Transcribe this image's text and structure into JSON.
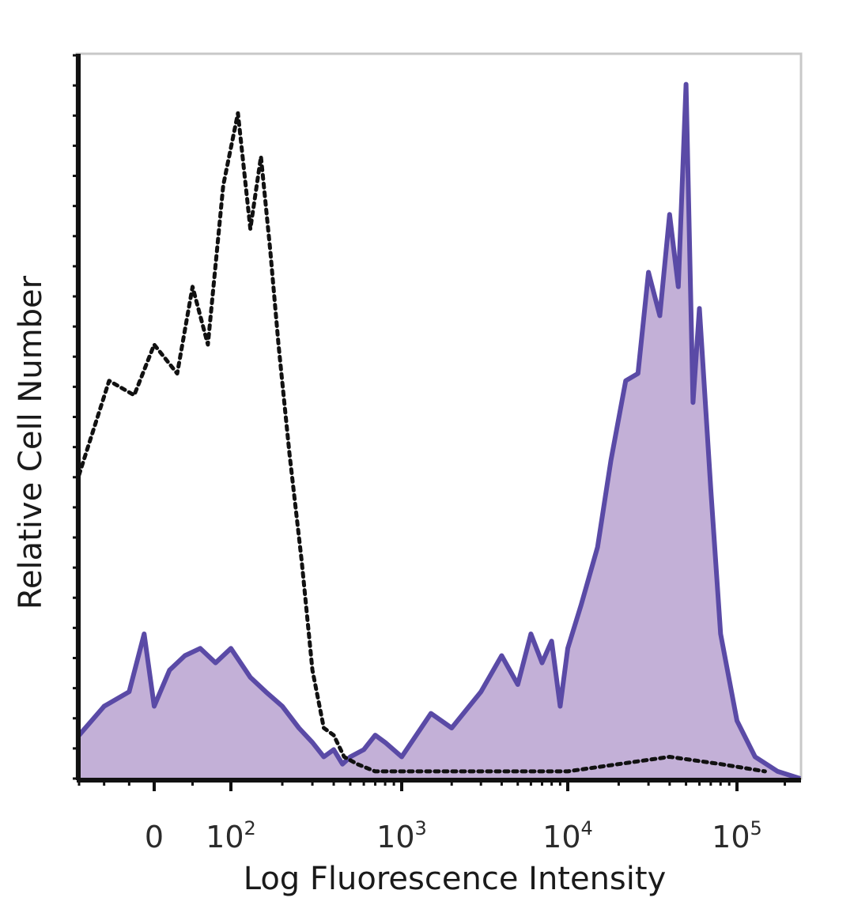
{
  "chart_data": {
    "type": "area",
    "title": "",
    "xlabel": "Log Fluorescence Intensity",
    "ylabel": "Relative Cell Number",
    "x_scale": "biexponential (log above 10^2)",
    "xlim": [
      -150,
      250000
    ],
    "ylim": [
      0,
      1
    ],
    "grid": false,
    "legend": "none",
    "x_ticks": [
      {
        "value": 0,
        "base": "0",
        "exp": ""
      },
      {
        "value": 100,
        "base": "10",
        "exp": "2"
      },
      {
        "value": 1000,
        "base": "10",
        "exp": "3"
      },
      {
        "value": 10000,
        "base": "10",
        "exp": "4"
      },
      {
        "value": 100000,
        "base": "10",
        "exp": "5"
      }
    ],
    "colors": {
      "stained_line": "#5a4aa6",
      "stained_fill": "#b9a2d0",
      "control_line": "#111111"
    },
    "series": [
      {
        "style": "dotted black line, unfilled",
        "x": [
          -150,
          -90,
          -40,
          0,
          30,
          50,
          70,
          90,
          110,
          130,
          150,
          170,
          190,
          220,
          260,
          300,
          350,
          400,
          460,
          550,
          700,
          1000,
          2000,
          5000,
          10000,
          20000,
          40000,
          80000,
          150000
        ],
        "y": [
          0.42,
          0.55,
          0.53,
          0.6,
          0.56,
          0.68,
          0.6,
          0.82,
          0.92,
          0.76,
          0.86,
          0.73,
          0.6,
          0.45,
          0.3,
          0.15,
          0.07,
          0.06,
          0.03,
          0.02,
          0.01,
          0.01,
          0.01,
          0.01,
          0.01,
          0.02,
          0.03,
          0.02,
          0.01
        ]
      },
      {
        "style": "purple line with light purple fill",
        "x": [
          -150,
          -100,
          -50,
          -20,
          0,
          20,
          40,
          60,
          80,
          100,
          130,
          160,
          200,
          250,
          300,
          350,
          400,
          450,
          500,
          600,
          700,
          800,
          1000,
          1500,
          2000,
          3000,
          4000,
          5000,
          6000,
          7000,
          8000,
          9000,
          10000,
          12000,
          15000,
          18000,
          22000,
          26000,
          30000,
          35000,
          40000,
          45000,
          50000,
          55000,
          60000,
          70000,
          80000,
          100000,
          130000,
          180000,
          250000
        ],
        "y": [
          0.06,
          0.1,
          0.12,
          0.2,
          0.1,
          0.15,
          0.17,
          0.18,
          0.16,
          0.18,
          0.14,
          0.12,
          0.1,
          0.07,
          0.05,
          0.03,
          0.04,
          0.02,
          0.03,
          0.04,
          0.06,
          0.05,
          0.03,
          0.09,
          0.07,
          0.12,
          0.17,
          0.13,
          0.2,
          0.16,
          0.19,
          0.1,
          0.18,
          0.24,
          0.32,
          0.44,
          0.55,
          0.56,
          0.7,
          0.64,
          0.78,
          0.68,
          0.96,
          0.52,
          0.65,
          0.4,
          0.2,
          0.08,
          0.03,
          0.01,
          0.0
        ]
      }
    ]
  }
}
